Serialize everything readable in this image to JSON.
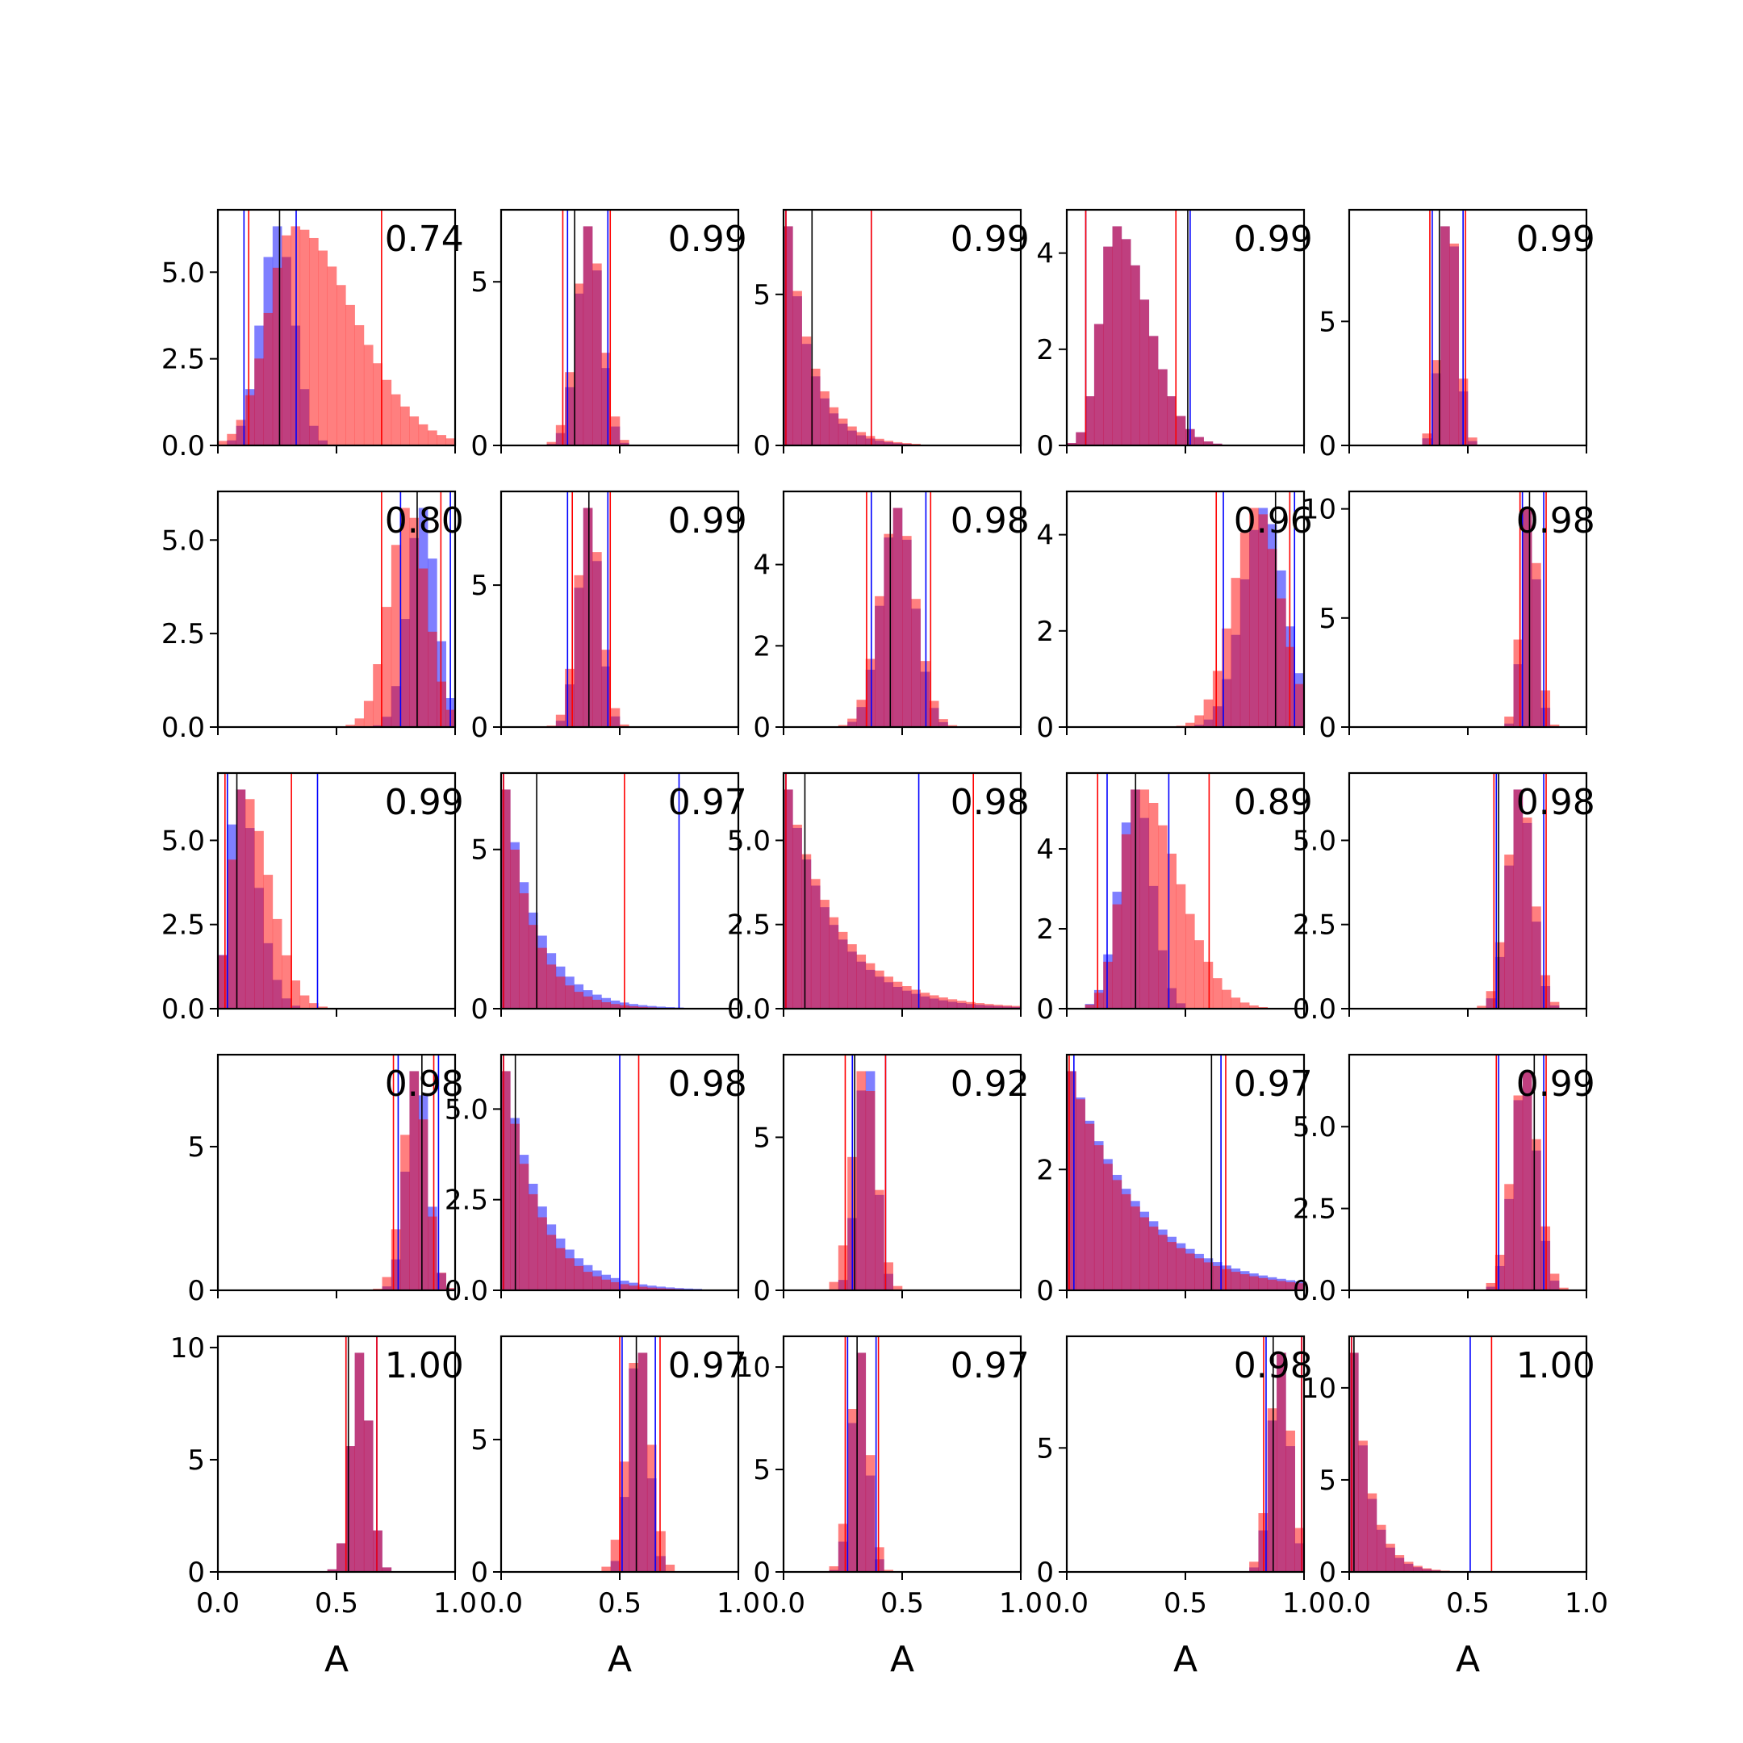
{
  "figure": {
    "xlabel": "A",
    "colors": {
      "blue": "#0000ff",
      "red": "#ff0000",
      "black": "#000000"
    }
  },
  "chart_data": {
    "type": "histogram-grid",
    "rows": 5,
    "cols": 5,
    "xlim": [
      0,
      1
    ],
    "xticks": [
      0,
      0.5,
      1
    ],
    "xticklabels": [
      "0.0",
      "0.5",
      "1.0"
    ],
    "xlabel": "A",
    "panels": [
      {
        "r": 0,
        "c": 0,
        "score": "0.74",
        "ylim": [
          0,
          6.8
        ],
        "yticks": [
          0,
          2.5,
          5
        ],
        "yticklabels": [
          "0.0",
          "2.5",
          "5.0"
        ],
        "blue": {
          "mean": 0.25,
          "sd": 0.07
        },
        "red": {
          "mean": 0.32,
          "sd": 0.18,
          "skew": true
        },
        "lines": {
          "blue": [
            0.11,
            0.33
          ],
          "red": [
            0.13,
            0.69
          ],
          "black": [
            0.26
          ]
        }
      },
      {
        "r": 0,
        "c": 1,
        "score": "0.99",
        "ylim": [
          0,
          7.2
        ],
        "yticks": [
          0,
          5
        ],
        "yticklabels": [
          "0",
          "5"
        ],
        "blue": {
          "mean": 0.37,
          "sd": 0.05
        },
        "red": {
          "mean": 0.37,
          "sd": 0.055
        },
        "lines": {
          "blue": [
            0.28,
            0.45
          ],
          "red": [
            0.26,
            0.46
          ],
          "black": [
            0.31
          ]
        }
      },
      {
        "r": 0,
        "c": 2,
        "score": "0.99",
        "ylim": [
          0,
          7.8
        ],
        "yticks": [
          0,
          5
        ],
        "yticklabels": [
          "0",
          "5"
        ],
        "blue": {
          "mean": 0.0,
          "sd": 0.1,
          "decay": true
        },
        "red": {
          "mean": 0.0,
          "sd": 0.11,
          "decay": true
        },
        "lines": {
          "blue": [
            0.01,
            0.37
          ],
          "red": [
            0.01,
            0.37
          ],
          "black": [
            0.12
          ]
        }
      },
      {
        "r": 0,
        "c": 3,
        "score": "0.99",
        "ylim": [
          0,
          4.9
        ],
        "yticks": [
          0,
          2,
          4
        ],
        "yticklabels": [
          "0",
          "2",
          "4"
        ],
        "blue": {
          "mean": 0.2,
          "sd": 0.1,
          "skew": true
        },
        "red": {
          "mean": 0.2,
          "sd": 0.1,
          "skew": true
        },
        "lines": {
          "blue": [
            0.08,
            0.52
          ],
          "red": [
            0.08,
            0.46
          ],
          "black": [
            0.51
          ]
        }
      },
      {
        "r": 0,
        "c": 4,
        "score": "0.99",
        "ylim": [
          0,
          9.5
        ],
        "yticks": [
          0,
          5
        ],
        "yticklabels": [
          "0",
          "5"
        ],
        "blue": {
          "mean": 0.42,
          "sd": 0.035
        },
        "red": {
          "mean": 0.42,
          "sd": 0.038
        },
        "lines": {
          "blue": [
            0.35,
            0.48
          ],
          "red": [
            0.34,
            0.49
          ],
          "black": [
            0.38
          ]
        }
      },
      {
        "r": 1,
        "c": 0,
        "score": "0.80",
        "ylim": [
          0,
          6.3
        ],
        "yticks": [
          0,
          2.5,
          5
        ],
        "yticklabels": [
          "0.0",
          "2.5",
          "5.0"
        ],
        "blue": {
          "mean": 0.86,
          "sd": 0.06
        },
        "red": {
          "mean": 0.8,
          "sd": 0.08
        },
        "lines": {
          "blue": [
            0.77,
            0.98
          ],
          "red": [
            0.69,
            0.94
          ],
          "black": [
            0.84
          ]
        }
      },
      {
        "r": 1,
        "c": 1,
        "score": "0.99",
        "ylim": [
          0,
          8.3
        ],
        "yticks": [
          0,
          5
        ],
        "yticklabels": [
          "0",
          "5"
        ],
        "blue": {
          "mean": 0.37,
          "sd": 0.045
        },
        "red": {
          "mean": 0.37,
          "sd": 0.05
        },
        "lines": {
          "blue": [
            0.28,
            0.45
          ],
          "red": [
            0.3,
            0.46
          ],
          "black": [
            0.37
          ]
        }
      },
      {
        "r": 1,
        "c": 2,
        "score": "0.98",
        "ylim": [
          0,
          5.8
        ],
        "yticks": [
          0,
          2,
          4
        ],
        "yticklabels": [
          "0",
          "2",
          "4"
        ],
        "blue": {
          "mean": 0.48,
          "sd": 0.07
        },
        "red": {
          "mean": 0.48,
          "sd": 0.075
        },
        "lines": {
          "blue": [
            0.37,
            0.6
          ],
          "red": [
            0.35,
            0.62
          ],
          "black": [
            0.45
          ]
        }
      },
      {
        "r": 1,
        "c": 3,
        "score": "0.96",
        "ylim": [
          0,
          4.9
        ],
        "yticks": [
          0,
          2,
          4
        ],
        "yticklabels": [
          "0",
          "2",
          "4"
        ],
        "blue": {
          "mean": 0.83,
          "sd": 0.09
        },
        "red": {
          "mean": 0.8,
          "sd": 0.1
        },
        "lines": {
          "blue": [
            0.66,
            0.96
          ],
          "red": [
            0.63,
            0.94
          ],
          "black": [
            0.88
          ]
        }
      },
      {
        "r": 1,
        "c": 4,
        "score": "0.98",
        "ylim": [
          0,
          10.8
        ],
        "yticks": [
          0,
          5,
          10
        ],
        "yticklabels": [
          "0",
          "5",
          "10"
        ],
        "blue": {
          "mean": 0.76,
          "sd": 0.03
        },
        "red": {
          "mean": 0.76,
          "sd": 0.035
        },
        "lines": {
          "blue": [
            0.73,
            0.82
          ],
          "red": [
            0.72,
            0.83
          ],
          "black": [
            0.76
          ]
        }
      },
      {
        "r": 2,
        "c": 0,
        "score": "0.99",
        "ylim": [
          0,
          7.0
        ],
        "yticks": [
          0,
          2.5,
          5
        ],
        "yticklabels": [
          "0.0",
          "2.5",
          "5.0"
        ],
        "blue": {
          "mean": 0.08,
          "sd": 0.06,
          "skew": true
        },
        "red": {
          "mean": 0.1,
          "sd": 0.08,
          "skew": true
        },
        "lines": {
          "blue": [
            0.04,
            0.42
          ],
          "red": [
            0.03,
            0.31
          ],
          "black": [
            0.08
          ]
        }
      },
      {
        "r": 2,
        "c": 1,
        "score": "0.97",
        "ylim": [
          0,
          7.4
        ],
        "yticks": [
          0,
          5
        ],
        "yticklabels": [
          "0",
          "5"
        ],
        "blue": {
          "mean": 0.0,
          "sd": 0.14,
          "decay": true
        },
        "red": {
          "mean": 0.0,
          "sd": 0.12,
          "decay": true
        },
        "lines": {
          "blue": [
            0.01,
            0.75
          ],
          "red": [
            0.01,
            0.52
          ],
          "black": [
            0.15
          ]
        }
      },
      {
        "r": 2,
        "c": 2,
        "score": "0.98",
        "ylim": [
          0,
          7.0
        ],
        "yticks": [
          0,
          2.5,
          5
        ],
        "yticklabels": [
          "0.0",
          "2.5",
          "5.0"
        ],
        "blue": {
          "mean": 0.0,
          "sd": 0.2,
          "decay": true
        },
        "red": {
          "mean": 0.0,
          "sd": 0.22,
          "decay": true
        },
        "lines": {
          "blue": [
            0.01,
            0.57
          ],
          "red": [
            0.01,
            0.8
          ],
          "black": [
            0.09
          ]
        }
      },
      {
        "r": 2,
        "c": 3,
        "score": "0.89",
        "ylim": [
          0,
          5.9
        ],
        "yticks": [
          0,
          2,
          4
        ],
        "yticklabels": [
          "0",
          "2",
          "4"
        ],
        "blue": {
          "mean": 0.29,
          "sd": 0.07
        },
        "red": {
          "mean": 0.3,
          "sd": 0.12,
          "skew": true
        },
        "lines": {
          "blue": [
            0.17,
            0.43
          ],
          "red": [
            0.13,
            0.6
          ],
          "black": [
            0.29
          ]
        }
      },
      {
        "r": 2,
        "c": 4,
        "score": "0.98",
        "ylim": [
          0,
          7.0
        ],
        "yticks": [
          0,
          2.5,
          5
        ],
        "yticklabels": [
          "0.0",
          "2.5",
          "5.0"
        ],
        "blue": {
          "mean": 0.72,
          "sd": 0.05
        },
        "red": {
          "mean": 0.72,
          "sd": 0.055
        },
        "lines": {
          "blue": [
            0.62,
            0.82
          ],
          "red": [
            0.61,
            0.83
          ],
          "black": [
            0.63
          ]
        }
      },
      {
        "r": 3,
        "c": 0,
        "score": "0.98",
        "ylim": [
          0,
          8.2
        ],
        "yticks": [
          0,
          5
        ],
        "yticklabels": [
          "0",
          "5"
        ],
        "blue": {
          "mean": 0.84,
          "sd": 0.045
        },
        "red": {
          "mean": 0.83,
          "sd": 0.05
        },
        "lines": {
          "blue": [
            0.76,
            0.93
          ],
          "red": [
            0.74,
            0.91
          ],
          "black": [
            0.86
          ]
        }
      },
      {
        "r": 3,
        "c": 1,
        "score": "0.98",
        "ylim": [
          0,
          6.5
        ],
        "yticks": [
          0,
          2.5,
          5
        ],
        "yticklabels": [
          "0.0",
          "2.5",
          "5.0"
        ],
        "blue": {
          "mean": 0.0,
          "sd": 0.16,
          "decay": true
        },
        "red": {
          "mean": 0.0,
          "sd": 0.14,
          "decay": true
        },
        "lines": {
          "blue": [
            0.01,
            0.5
          ],
          "red": [
            0.01,
            0.58
          ],
          "black": [
            0.06
          ]
        }
      },
      {
        "r": 3,
        "c": 2,
        "score": "0.92",
        "ylim": [
          0,
          7.7
        ],
        "yticks": [
          0,
          5
        ],
        "yticklabels": [
          "0",
          "5"
        ],
        "blue": {
          "mean": 0.35,
          "sd": 0.04
        },
        "red": {
          "mean": 0.34,
          "sd": 0.05
        },
        "lines": {
          "blue": [
            0.29,
            0.43
          ],
          "red": [
            0.26,
            0.43
          ],
          "black": [
            0.3
          ]
        }
      },
      {
        "r": 3,
        "c": 3,
        "score": "0.97",
        "ylim": [
          0,
          3.9
        ],
        "yticks": [
          0,
          2
        ],
        "yticklabels": [
          "0",
          "2"
        ],
        "blue": {
          "mean": 0.0,
          "sd": 0.3,
          "decay": true
        },
        "red": {
          "mean": 0.0,
          "sd": 0.28,
          "decay": true
        },
        "lines": {
          "blue": [
            0.03,
            0.65
          ],
          "red": [
            0.01,
            0.67
          ],
          "black": [
            0.61
          ]
        }
      },
      {
        "r": 3,
        "c": 4,
        "score": "0.99",
        "ylim": [
          0,
          7.2
        ],
        "yticks": [
          0,
          2.5,
          5
        ],
        "yticklabels": [
          "0.0",
          "2.5",
          "5.0"
        ],
        "blue": {
          "mean": 0.74,
          "sd": 0.05
        },
        "red": {
          "mean": 0.74,
          "sd": 0.055
        },
        "lines": {
          "blue": [
            0.63,
            0.82
          ],
          "red": [
            0.62,
            0.83
          ],
          "black": [
            0.78
          ]
        }
      },
      {
        "r": 4,
        "c": 0,
        "score": "1.00",
        "ylim": [
          0,
          10.5
        ],
        "yticks": [
          0,
          5,
          10
        ],
        "yticklabels": [
          "0",
          "5",
          "10"
        ],
        "blue": {
          "mean": 0.6,
          "sd": 0.04
        },
        "red": {
          "mean": 0.6,
          "sd": 0.04
        },
        "lines": {
          "blue": [
            0.54,
            0.67
          ],
          "red": [
            0.54,
            0.67
          ],
          "black": [
            0.55
          ]
        }
      },
      {
        "r": 4,
        "c": 1,
        "score": "0.97",
        "ylim": [
          0,
          8.9
        ],
        "yticks": [
          0,
          5
        ],
        "yticklabels": [
          "0",
          "5"
        ],
        "blue": {
          "mean": 0.58,
          "sd": 0.04
        },
        "red": {
          "mean": 0.58,
          "sd": 0.05
        },
        "lines": {
          "blue": [
            0.51,
            0.65
          ],
          "red": [
            0.5,
            0.67
          ],
          "black": [
            0.57
          ]
        }
      },
      {
        "r": 4,
        "c": 2,
        "score": "0.97",
        "ylim": [
          0,
          11.5
        ],
        "yticks": [
          0,
          5,
          10
        ],
        "yticklabels": [
          "0",
          "5",
          "10"
        ],
        "blue": {
          "mean": 0.32,
          "sd": 0.035
        },
        "red": {
          "mean": 0.32,
          "sd": 0.04
        },
        "lines": {
          "blue": [
            0.27,
            0.39
          ],
          "red": [
            0.26,
            0.4
          ],
          "black": [
            0.31
          ]
        }
      },
      {
        "r": 4,
        "c": 3,
        "score": "0.98",
        "ylim": [
          0,
          9.5
        ],
        "yticks": [
          0,
          5
        ],
        "yticklabels": [
          "0",
          "5"
        ],
        "blue": {
          "mean": 0.9,
          "sd": 0.04
        },
        "red": {
          "mean": 0.9,
          "sd": 0.045
        },
        "lines": {
          "blue": [
            0.84,
            0.99
          ],
          "red": [
            0.83,
            0.99
          ],
          "black": [
            0.87
          ]
        }
      },
      {
        "r": 4,
        "c": 4,
        "score": "1.00",
        "ylim": [
          0,
          12.8
        ],
        "yticks": [
          0,
          5,
          10
        ],
        "yticklabels": [
          "0",
          "5",
          "10"
        ],
        "blue": {
          "mean": 0.0,
          "sd": 0.07,
          "decay": true
        },
        "red": {
          "mean": 0.0,
          "sd": 0.075,
          "decay": true
        },
        "lines": {
          "blue": [
            0.01,
            0.51
          ],
          "red": [
            0.01,
            0.6
          ],
          "black": [
            0.02
          ]
        }
      }
    ]
  }
}
